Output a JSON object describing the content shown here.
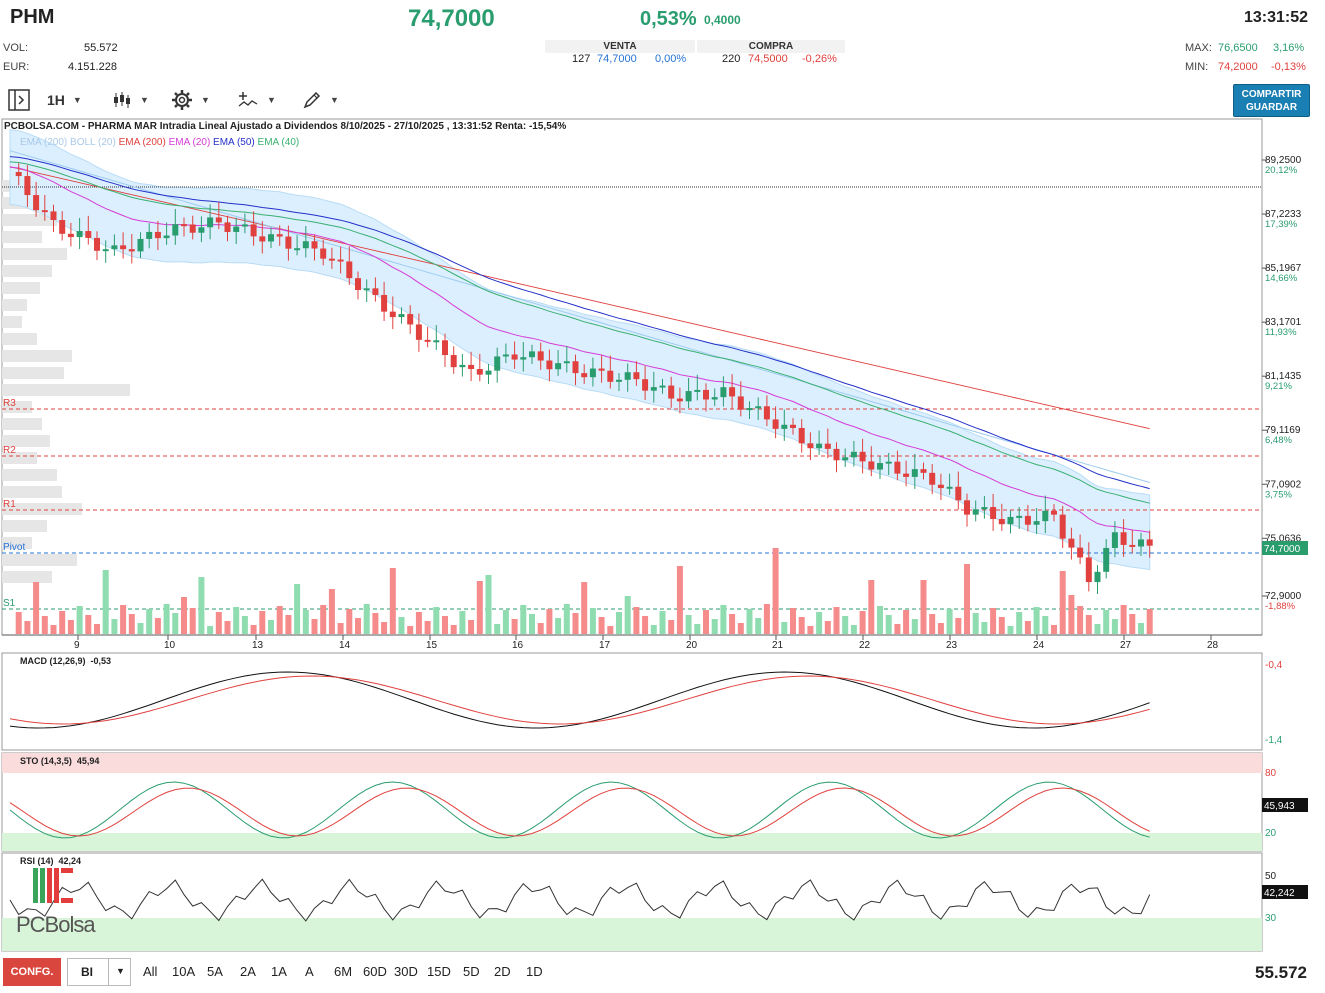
{
  "header": {
    "ticker": "PHM",
    "price": "74,7000",
    "change_pct": "0,53%",
    "change_abs": "0,4000",
    "time": "13:31:52",
    "vol_label": "VOL:",
    "vol_value": "55.572",
    "eur_label": "EUR:",
    "eur_value": "4.151.228",
    "venta_label": "VENTA",
    "venta_qty": "127",
    "venta_price": "74,7000",
    "venta_pct": "0,00%",
    "compra_label": "COMPRA",
    "compra_qty": "220",
    "compra_price": "74,5000",
    "compra_pct": "-0,26%",
    "max_label": "MAX:",
    "max_value": "76,6500",
    "max_pct": "3,16%",
    "min_label": "MIN:",
    "min_value": "74,2000",
    "min_pct": "-0,13%"
  },
  "toolbar": {
    "interval": "1H",
    "share_line1": "COMPARTIR",
    "share_line2": "GUARDAR",
    "icons": [
      "panel-toggle-icon",
      "candles-icon",
      "gear-icon",
      "indicators-icon",
      "draw-icon"
    ]
  },
  "chart": {
    "title": "PCBOLSA.COM - PHARMA MAR Intradia Lineal Ajustado a Dividendos 8/10/2025 - 27/10/2025 , 13:31:52 Renta: -15,54%",
    "legend": [
      {
        "label": "EMA (200)",
        "color": "#e0413e"
      },
      {
        "label": "EMA (20)",
        "color": "#d63bd6"
      },
      {
        "label": "EMA (50)",
        "color": "#2330c8"
      },
      {
        "label": "EMA (40)",
        "color": "#3ab06f"
      }
    ],
    "legend_faded": "EMA (200) BOLL (20)",
    "price_axis": [
      {
        "price": "89,2500",
        "pct": "20,12%"
      },
      {
        "price": "87,2233",
        "pct": "17,39%"
      },
      {
        "price": "85,1967",
        "pct": "14,66%"
      },
      {
        "price": "83,1701",
        "pct": "11,93%"
      },
      {
        "price": "81,1435",
        "pct": "9,21%"
      },
      {
        "price": "79,1169",
        "pct": "6,48%"
      },
      {
        "price": "77,0902",
        "pct": "3,75%"
      },
      {
        "price": "75,0636",
        "pct": ""
      },
      {
        "price": "72,9000",
        "pct": "-1,88%"
      }
    ],
    "current_price_tag": "74,7000",
    "levels": [
      "R3",
      "R2",
      "R1",
      "Pivot",
      "S1"
    ],
    "dates": [
      "9",
      "10",
      "13",
      "14",
      "15",
      "16",
      "17",
      "20",
      "21",
      "22",
      "23",
      "24",
      "27",
      "28"
    ]
  },
  "macd": {
    "label": "MACD (12,26,9)",
    "value": "-0,53",
    "axis_top": "-0,4",
    "axis_bottom": "-1,4"
  },
  "sto": {
    "label": "STO (14,3,5)",
    "value": "45,94",
    "tag": "45,943",
    "axis_high": "80",
    "axis_low": "20"
  },
  "rsi": {
    "label": "RSI (14)",
    "value": "42,24",
    "tag": "42,242",
    "axis_high": "50",
    "axis_low": "30",
    "watermark": "PCBolsa"
  },
  "bottombar": {
    "config": "CONFG.",
    "select_value": "BI",
    "ranges": [
      "All",
      "10A",
      "5A",
      "2A",
      "1A",
      "A",
      "6M",
      "60D",
      "30D",
      "15D",
      "5D",
      "2D",
      "1D"
    ],
    "volume_total": "55.572"
  },
  "colors": {
    "up": "#2a9d6f",
    "down": "#e0413e",
    "accent": "#1a7fb3"
  }
}
